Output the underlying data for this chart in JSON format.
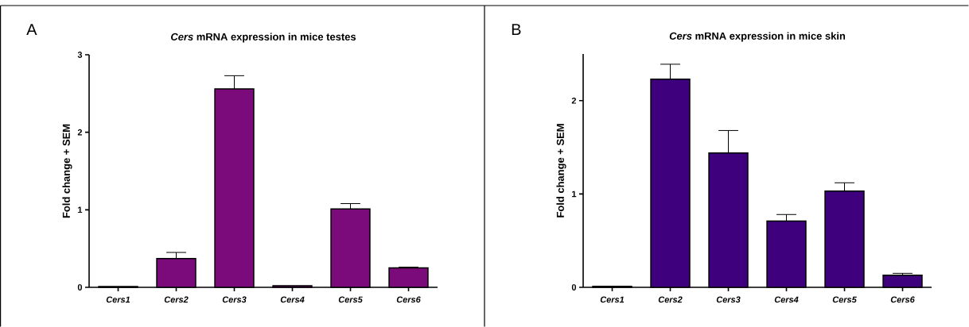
{
  "chart_data": [
    {
      "type": "bar",
      "title": "*Cers* mRNA expression in mice testes",
      "ylabel": "Fold change + SEM",
      "annotations": [
        "A"
      ],
      "categories": [
        "Cers1",
        "Cers2",
        "Cers3",
        "Cers4",
        "Cers5",
        "Cers6"
      ],
      "values": [
        0.01,
        0.37,
        2.56,
        0.02,
        1.01,
        0.25
      ],
      "errors": [
        null,
        [
          0.37,
          0.45
        ],
        [
          2.56,
          2.73
        ],
        null,
        [
          1.01,
          1.08
        ],
        [
          0.25,
          0.26
        ]
      ],
      "color": "#7b0a7b",
      "ylim": [
        0,
        3
      ],
      "yticks": [
        0,
        1,
        2,
        3
      ]
    },
    {
      "type": "bar",
      "title": "*Cers* mRNA expression in mice skin",
      "ylabel": "Fold change + SEM",
      "annotations": [
        "B"
      ],
      "categories": [
        "Cers1",
        "Cers2",
        "Cers3",
        "Cers4",
        "Cers5",
        "Cers6"
      ],
      "values": [
        0.01,
        2.23,
        1.44,
        0.71,
        1.03,
        0.13
      ],
      "errors": [
        null,
        [
          2.23,
          2.39
        ],
        [
          1.44,
          1.68
        ],
        [
          0.71,
          0.78
        ],
        [
          1.03,
          1.12
        ],
        [
          0.13,
          0.15
        ]
      ],
      "color": "#3f007d",
      "ylim": [
        0,
        2.5
      ],
      "yticks": [
        0,
        1,
        2
      ]
    }
  ]
}
